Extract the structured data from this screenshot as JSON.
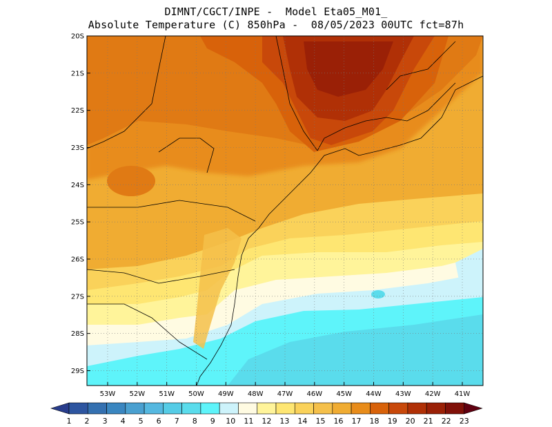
{
  "header": {
    "line1": "DIMNT/CGCT/INPE -  Model Eta05_M01_",
    "line2": "Absolute Temperature (C) 850hPa -  08/05/2023 00UTC fct=87h"
  },
  "map": {
    "lon_range": [
      -53.7,
      -40.3
    ],
    "lat_range": [
      -29.4,
      -20.0
    ],
    "lat_ticks": [
      {
        "value": -20,
        "label": "20S"
      },
      {
        "value": -21,
        "label": "21S"
      },
      {
        "value": -22,
        "label": "22S"
      },
      {
        "value": -23,
        "label": "23S"
      },
      {
        "value": -24,
        "label": "24S"
      },
      {
        "value": -25,
        "label": "25S"
      },
      {
        "value": -26,
        "label": "26S"
      },
      {
        "value": -27,
        "label": "27S"
      },
      {
        "value": -28,
        "label": "28S"
      },
      {
        "value": -29,
        "label": "29S"
      }
    ],
    "lon_ticks": [
      {
        "value": -53,
        "label": "53W"
      },
      {
        "value": -52,
        "label": "52W"
      },
      {
        "value": -51,
        "label": "51W"
      },
      {
        "value": -50,
        "label": "50W"
      },
      {
        "value": -49,
        "label": "49W"
      },
      {
        "value": -48,
        "label": "48W"
      },
      {
        "value": -47,
        "label": "47W"
      },
      {
        "value": -46,
        "label": "46W"
      },
      {
        "value": -45,
        "label": "45W"
      },
      {
        "value": -44,
        "label": "44W"
      },
      {
        "value": -43,
        "label": "43W"
      },
      {
        "value": -42,
        "label": "42W"
      },
      {
        "value": -41,
        "label": "41W"
      }
    ],
    "grid": "dotted"
  },
  "colorbar": {
    "labels": [
      "1",
      "2",
      "3",
      "4",
      "5",
      "6",
      "7",
      "8",
      "9",
      "10",
      "11",
      "12",
      "13",
      "14",
      "15",
      "16",
      "17",
      "18",
      "19",
      "20",
      "21",
      "22",
      "23"
    ],
    "colors": [
      "#283c8c",
      "#2d55a0",
      "#3470b0",
      "#3a86c0",
      "#4aa0d0",
      "#55b8e0",
      "#55cce6",
      "#5adcec",
      "#5ef4fa",
      "#cdf3fb",
      "#fffbe2",
      "#fff49a",
      "#fee672",
      "#fad25a",
      "#f5c04a",
      "#f0ac32",
      "#e88c1a",
      "#d8620a",
      "#c8480a",
      "#b03006",
      "#9a2006",
      "#801008",
      "#600010"
    ]
  }
}
